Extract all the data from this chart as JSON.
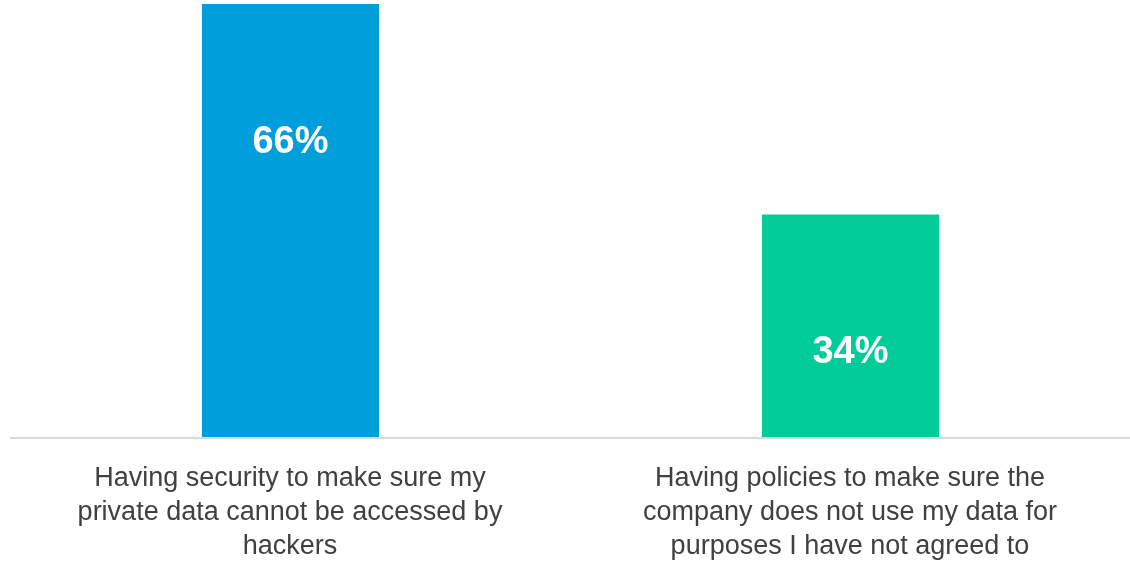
{
  "chart_data": {
    "type": "bar",
    "categories": [
      "Having security to make sure my private data cannot be accessed by hackers",
      "Having policies to make sure the company does not use my data for purposes I have not agreed to"
    ],
    "values": [
      66,
      34
    ],
    "colors": [
      "#009fdb",
      "#00cc99"
    ],
    "value_labels": [
      "66%",
      "34%"
    ]
  }
}
